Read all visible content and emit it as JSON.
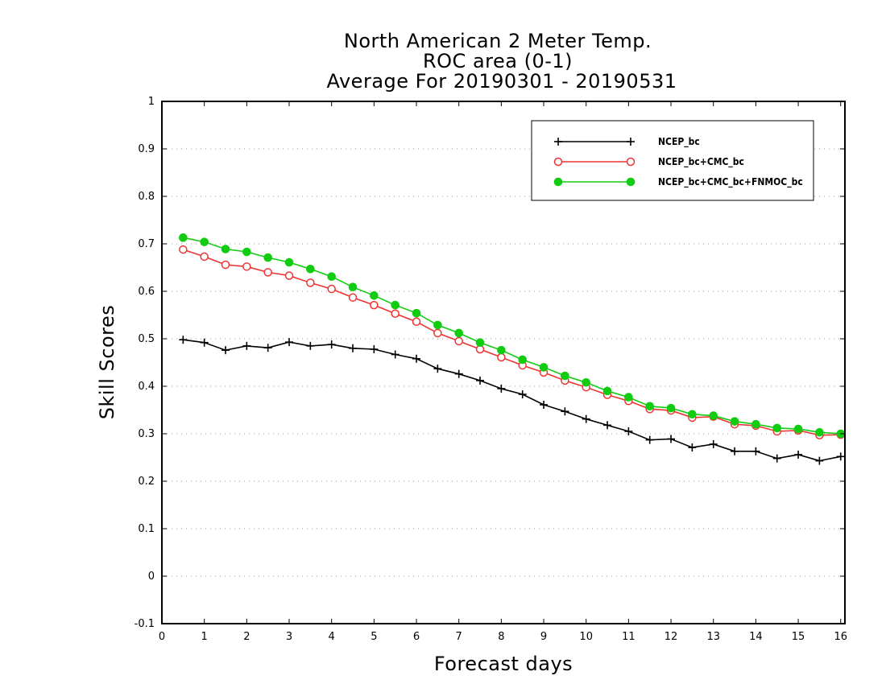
{
  "chart_data": {
    "type": "line",
    "title": [
      "North American 2 Meter Temp.",
      "ROC area (0-1)",
      "Average For 20190301 - 20190531"
    ],
    "xlabel": "Forecast days",
    "ylabel": "Skill Scores",
    "xlim": [
      0,
      16.1
    ],
    "ylim": [
      -0.1,
      1
    ],
    "xticks": [
      0,
      1,
      2,
      3,
      4,
      5,
      6,
      7,
      8,
      9,
      10,
      11,
      12,
      13,
      14,
      15,
      16
    ],
    "yticks": [
      -0.1,
      0,
      0.1,
      0.2,
      0.3,
      0.4,
      0.5,
      0.6,
      0.7,
      0.8,
      0.9,
      1
    ],
    "ytick_labels": [
      "-0.1",
      "0",
      "0.1",
      "0.2",
      "0.3",
      "0.4",
      "0.5",
      "0.6",
      "0.7",
      "0.8",
      "0.9",
      "1"
    ],
    "grid": true,
    "legend_position": "top-right",
    "x": [
      0.5,
      1.0,
      1.5,
      2.0,
      2.5,
      3.0,
      3.5,
      4.0,
      4.5,
      5.0,
      5.5,
      6.0,
      6.5,
      7.0,
      7.5,
      8.0,
      8.5,
      9.0,
      9.5,
      10.0,
      10.5,
      11.0,
      11.5,
      12.0,
      12.5,
      13.0,
      13.5,
      14.0,
      14.5,
      15.0,
      15.5,
      16.0
    ],
    "series": [
      {
        "name": "NCEP_bc",
        "color": "#000000",
        "marker": "plus",
        "values": [
          0.498,
          0.492,
          0.476,
          0.485,
          0.481,
          0.493,
          0.485,
          0.488,
          0.48,
          0.478,
          0.467,
          0.458,
          0.437,
          0.426,
          0.412,
          0.395,
          0.383,
          0.361,
          0.347,
          0.331,
          0.318,
          0.305,
          0.287,
          0.289,
          0.271,
          0.278,
          0.263,
          0.263,
          0.248,
          0.256,
          0.243,
          0.252
        ]
      },
      {
        "name": "NCEP_bc+CMC_bc",
        "color": "#ee3333",
        "marker": "open-circle",
        "values": [
          0.688,
          0.673,
          0.656,
          0.652,
          0.64,
          0.633,
          0.618,
          0.605,
          0.587,
          0.571,
          0.553,
          0.536,
          0.512,
          0.495,
          0.478,
          0.461,
          0.444,
          0.429,
          0.412,
          0.398,
          0.382,
          0.369,
          0.352,
          0.349,
          0.334,
          0.336,
          0.32,
          0.317,
          0.305,
          0.307,
          0.297,
          0.298
        ]
      },
      {
        "name": "NCEP_bc+CMC_bc+FNMOC_bc",
        "color": "#11cc11",
        "marker": "filled-circle",
        "values": [
          0.713,
          0.704,
          0.689,
          0.683,
          0.671,
          0.661,
          0.647,
          0.631,
          0.609,
          0.591,
          0.571,
          0.554,
          0.529,
          0.512,
          0.492,
          0.476,
          0.456,
          0.44,
          0.422,
          0.408,
          0.39,
          0.377,
          0.358,
          0.354,
          0.341,
          0.338,
          0.326,
          0.32,
          0.312,
          0.31,
          0.303,
          0.3
        ]
      }
    ]
  }
}
